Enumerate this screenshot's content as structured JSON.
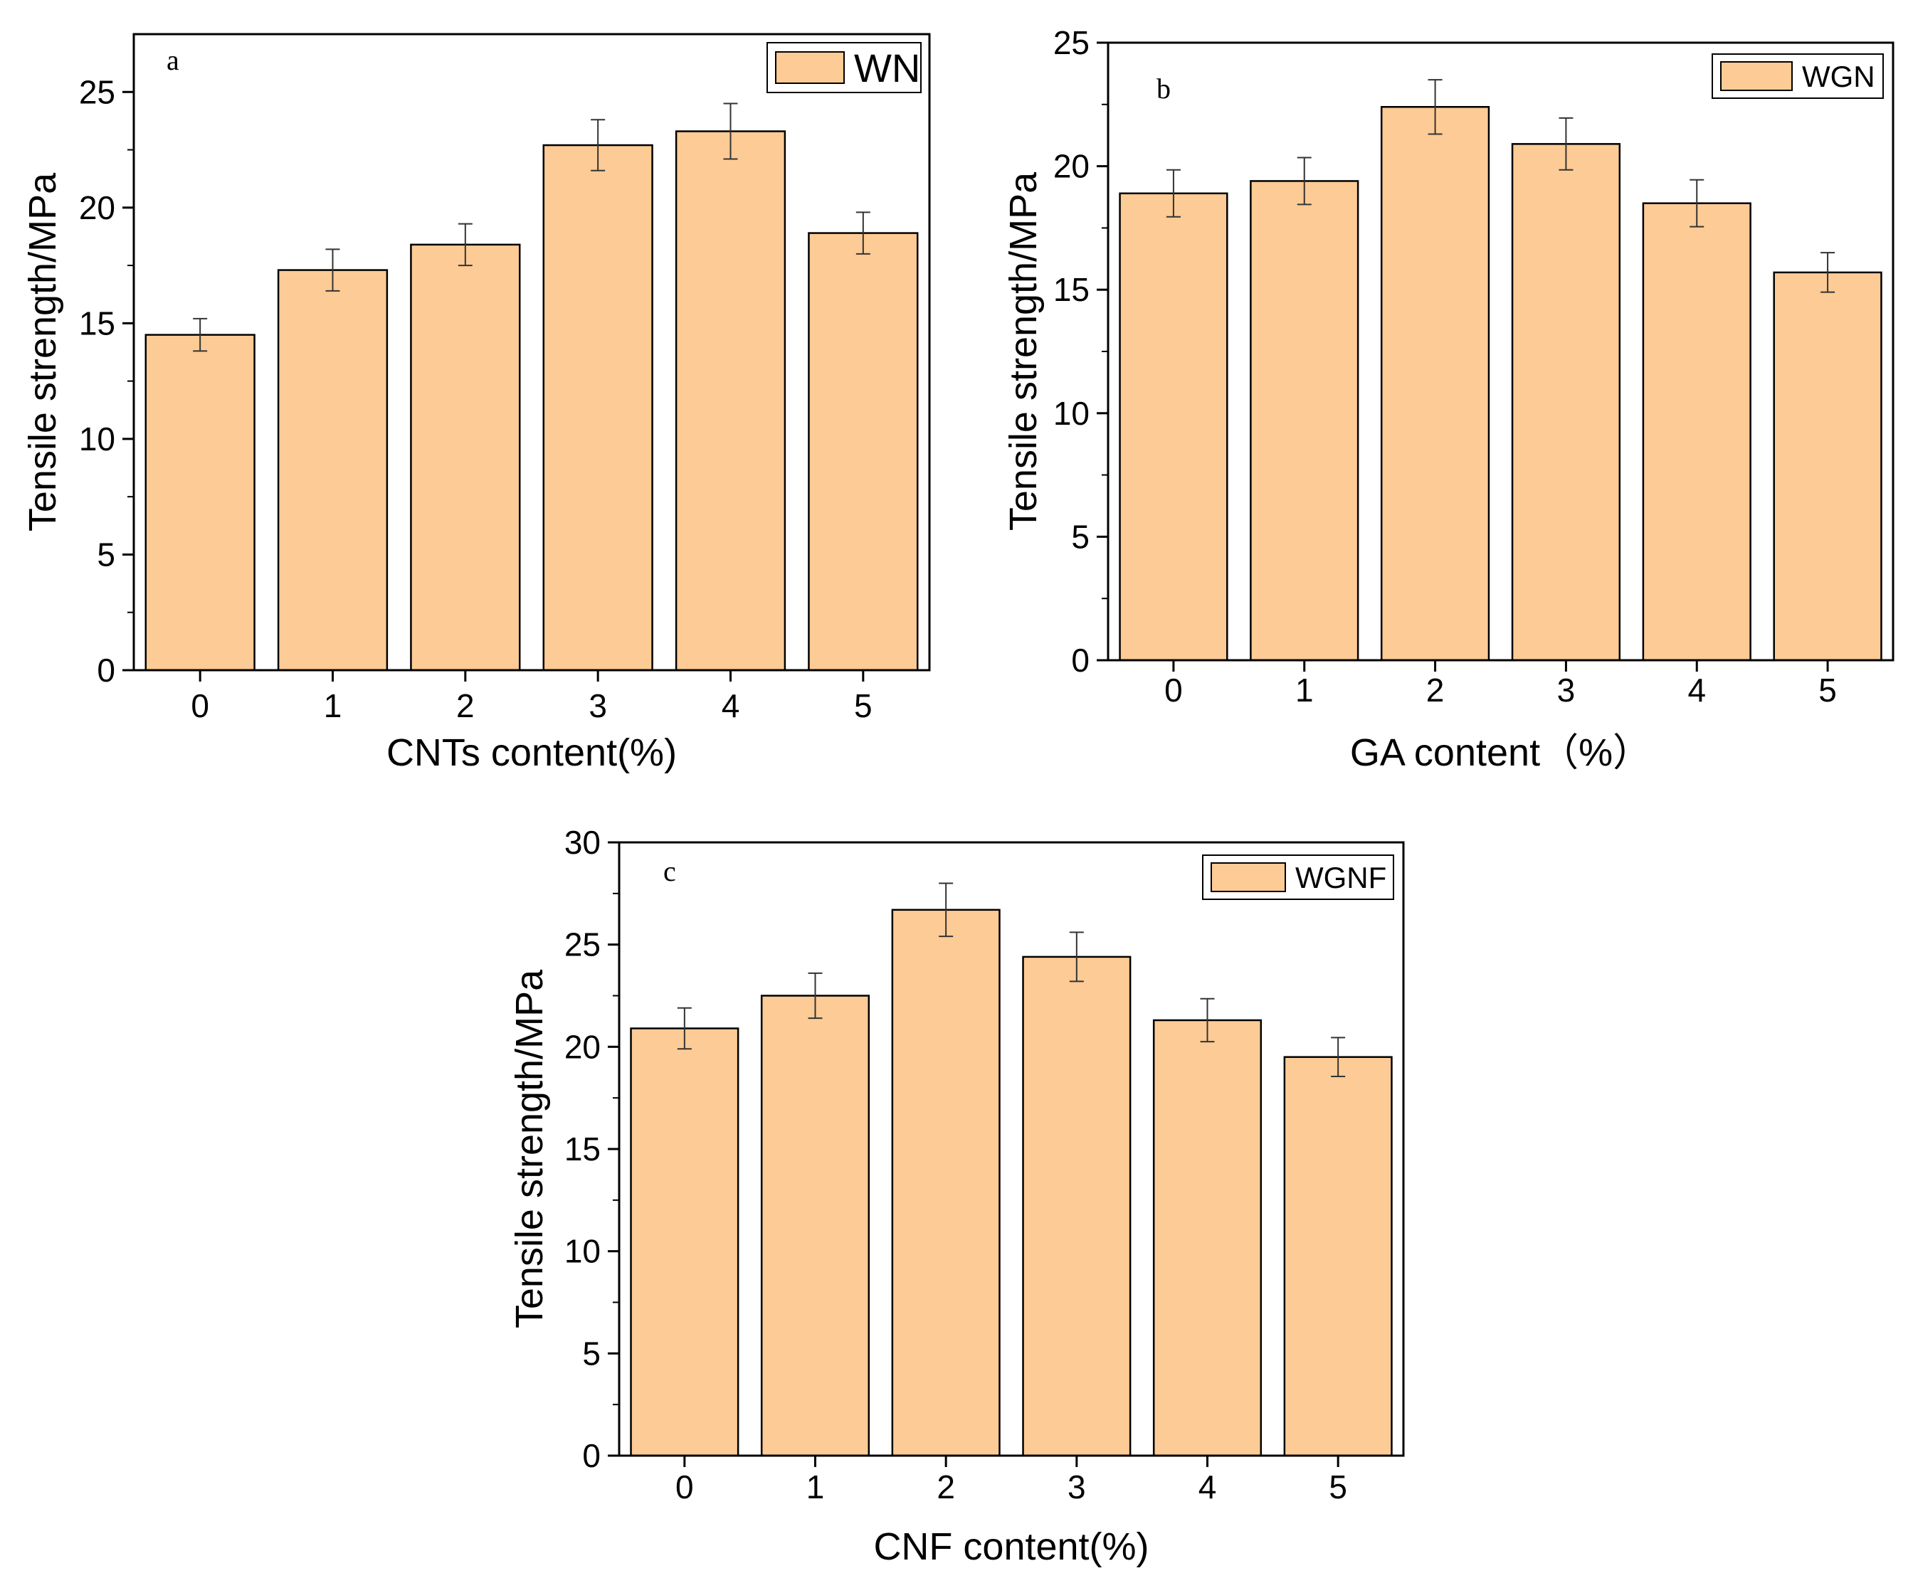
{
  "chart_data": [
    {
      "type": "bar",
      "panel_label": "a",
      "legend": "WN",
      "categories": [
        "0",
        "1",
        "2",
        "3",
        "4",
        "5"
      ],
      "values": [
        14.5,
        17.3,
        18.4,
        22.7,
        23.3,
        18.9
      ],
      "errors": [
        0.7,
        0.9,
        0.9,
        1.1,
        1.2,
        0.9
      ],
      "xlabel": "CNTs content(%)",
      "ylabel": "Tensile strength/MPa",
      "ylim": [
        0,
        27.5
      ],
      "yticks": [
        "0",
        "5",
        "10",
        "15",
        "20",
        "25"
      ],
      "color": "#fdcb95",
      "legend_position": "top-right"
    },
    {
      "type": "bar",
      "panel_label": "b",
      "legend": "WGN",
      "categories": [
        "0",
        "1",
        "2",
        "3",
        "4",
        "5"
      ],
      "values": [
        18.9,
        19.4,
        22.4,
        20.9,
        18.5,
        15.7
      ],
      "errors": [
        0.95,
        0.95,
        1.1,
        1.05,
        0.95,
        0.8
      ],
      "xlabel": "GA content（%）",
      "ylabel": "Tensile strength/MPa",
      "ylim": [
        0,
        25
      ],
      "yticks": [
        "0",
        "5",
        "10",
        "15",
        "20",
        "25"
      ],
      "color": "#fdcb95",
      "legend_position": "top-right"
    },
    {
      "type": "bar",
      "panel_label": "c",
      "legend": "WGNF",
      "categories": [
        "0",
        "1",
        "2",
        "3",
        "4",
        "5"
      ],
      "values": [
        20.9,
        22.5,
        26.7,
        24.4,
        21.3,
        19.5
      ],
      "errors": [
        1.0,
        1.1,
        1.3,
        1.2,
        1.05,
        0.95
      ],
      "xlabel": "CNF content(%)",
      "ylabel": "Tensile strength/MPa",
      "ylim": [
        0,
        30
      ],
      "yticks": [
        "0",
        "5",
        "10",
        "15",
        "20",
        "25",
        "30"
      ],
      "color": "#fdcb95",
      "legend_position": "top-right"
    }
  ]
}
